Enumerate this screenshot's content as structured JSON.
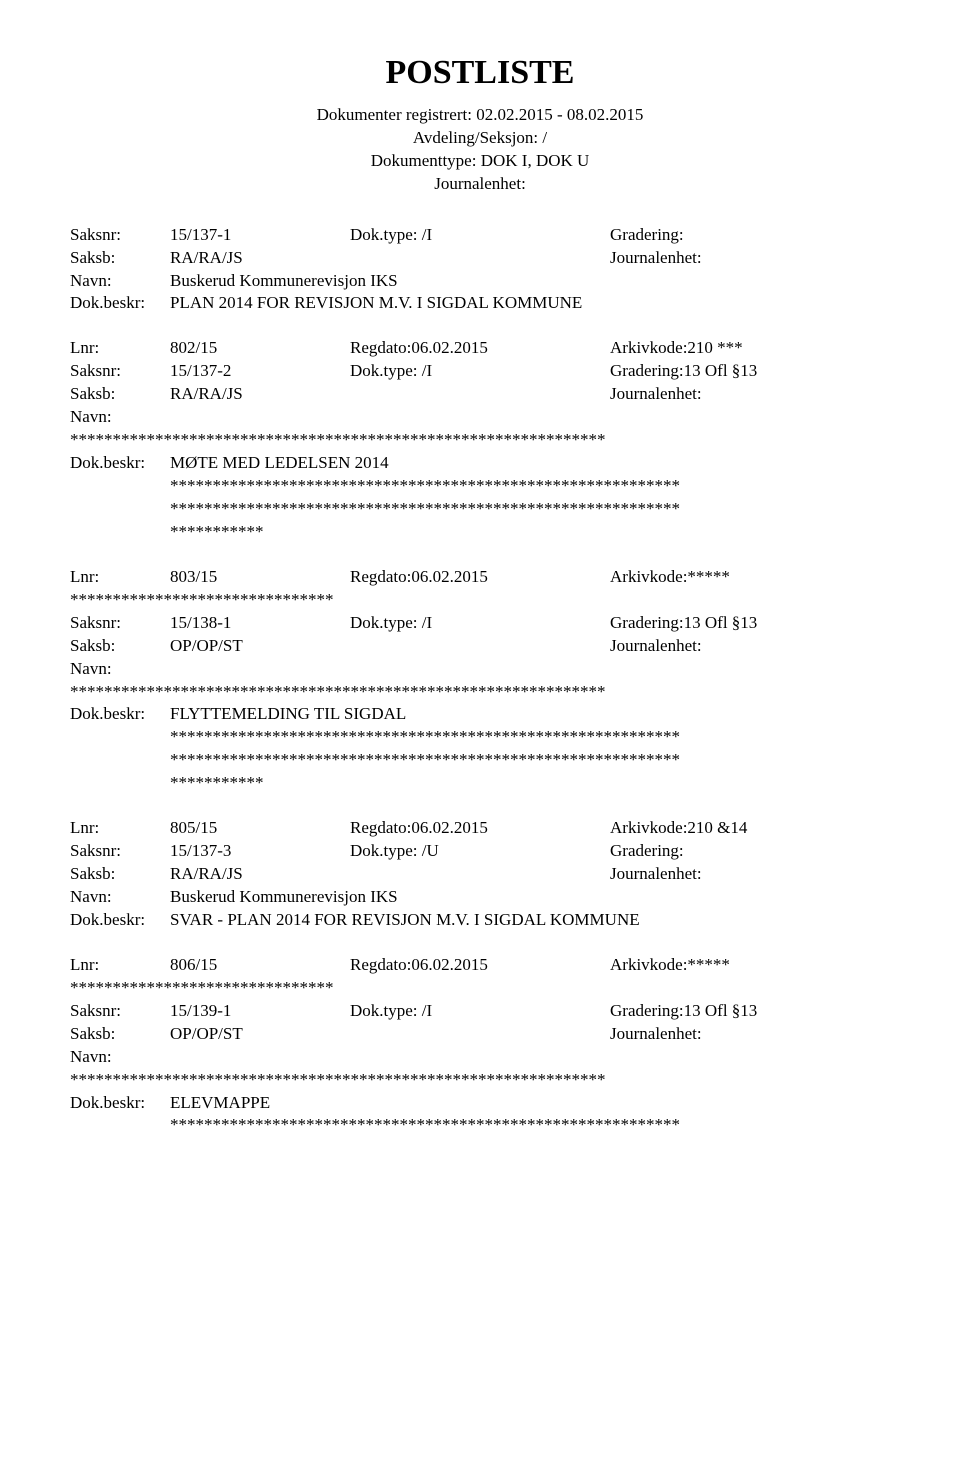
{
  "title": "POSTLISTE",
  "header": {
    "line1": "Dokumenter registrert: 02.02.2015 - 08.02.2015",
    "line2": "Avdeling/Seksjon: /",
    "line3": "Dokumenttype: DOK I, DOK U",
    "line4": "Journalenhet:"
  },
  "labels": {
    "saksnr": "Saksnr:",
    "saksb": "Saksb:",
    "navn": "Navn:",
    "dokbeskr": "Dok.beskr:",
    "lnr": "Lnr:"
  },
  "entries": [
    {
      "rows": [
        {
          "c1": "Saksnr:",
          "c2": "15/137-1",
          "c3": "Dok.type: /I",
          "c4": "Gradering:"
        },
        {
          "c1": "Saksb:",
          "c2": "RA/RA/JS",
          "c3": "",
          "c4": "Journalenhet:"
        },
        {
          "c1": "Navn:",
          "c2": "Buskerud Kommunerevisjon IKS",
          "span": true
        },
        {
          "c1": "Dok.beskr:",
          "c2": "PLAN 2014 FOR REVISJON M.V. I SIGDAL KOMMUNE",
          "span": true
        }
      ]
    },
    {
      "rows": [
        {
          "c1": "Lnr:",
          "c2": "802/15",
          "c3": "Regdato:06.02.2015",
          "c4": "Arkivkode:210 ***"
        },
        {
          "c1": "Saksnr:",
          "c2": "15/137-2",
          "c3": "Dok.type: /I",
          "c4": "Gradering:13 Ofl §13"
        },
        {
          "c1": "Saksb:",
          "c2": "RA/RA/JS",
          "c3": "",
          "c4": "Journalenhet:"
        },
        {
          "c1": "Navn:",
          "c2": "",
          "span": true
        },
        {
          "stars": "***************************************************************"
        },
        {
          "c1": "Dok.beskr:",
          "c2": "MØTE MED LEDELSEN 2014",
          "span": true
        },
        {
          "indentstars": "************************************************************ ************************************************************ ***********"
        }
      ]
    },
    {
      "rows": [
        {
          "c1": "Lnr:",
          "c2": "803/15",
          "c3": "Regdato:06.02.2015",
          "c4": "Arkivkode:*****"
        },
        {
          "stars": "*******************************"
        },
        {
          "c1": "Saksnr:",
          "c2": "15/138-1",
          "c3": "Dok.type: /I",
          "c4": "Gradering:13 Ofl §13"
        },
        {
          "c1": "Saksb:",
          "c2": "OP/OP/ST",
          "c3": "",
          "c4": "Journalenhet:"
        },
        {
          "c1": "Navn:",
          "c2": "",
          "span": true
        },
        {
          "stars": "***************************************************************"
        },
        {
          "c1": "Dok.beskr:",
          "c2": "FLYTTEMELDING TIL SIGDAL",
          "span": true
        },
        {
          "indentstars": "************************************************************ ************************************************************ ***********"
        }
      ]
    },
    {
      "rows": [
        {
          "c1": "Lnr:",
          "c2": "805/15",
          "c3": "Regdato:06.02.2015",
          "c4": "Arkivkode:210 &14"
        },
        {
          "c1": "Saksnr:",
          "c2": "15/137-3",
          "c3": "Dok.type: /U",
          "c4": "Gradering:"
        },
        {
          "c1": "Saksb:",
          "c2": "RA/RA/JS",
          "c3": "",
          "c4": "Journalenhet:"
        },
        {
          "c1": "Navn:",
          "c2": "Buskerud Kommunerevisjon IKS",
          "span": true
        },
        {
          "c1": "Dok.beskr:",
          "c2": "SVAR - PLAN 2014 FOR REVISJON M.V. I SIGDAL KOMMUNE",
          "span": true
        }
      ]
    },
    {
      "rows": [
        {
          "c1": "Lnr:",
          "c2": "806/15",
          "c3": "Regdato:06.02.2015",
          "c4": "Arkivkode:*****"
        },
        {
          "stars": "*******************************"
        },
        {
          "c1": "Saksnr:",
          "c2": "15/139-1",
          "c3": "Dok.type: /I",
          "c4": "Gradering:13 Ofl §13"
        },
        {
          "c1": "Saksb:",
          "c2": "OP/OP/ST",
          "c3": "",
          "c4": "Journalenhet:"
        },
        {
          "c1": "Navn:",
          "c2": "",
          "span": true
        },
        {
          "stars": "***************************************************************"
        },
        {
          "c1": "Dok.beskr:",
          "c2": "ELEVMAPPE",
          "span": true
        },
        {
          "indentstars": "************************************************************"
        }
      ]
    }
  ],
  "colors": {
    "background": "#ffffff",
    "text": "#000000"
  },
  "typography": {
    "title_fontsize_pt": 26,
    "body_fontsize_pt": 13,
    "font_family": "Times New Roman"
  }
}
